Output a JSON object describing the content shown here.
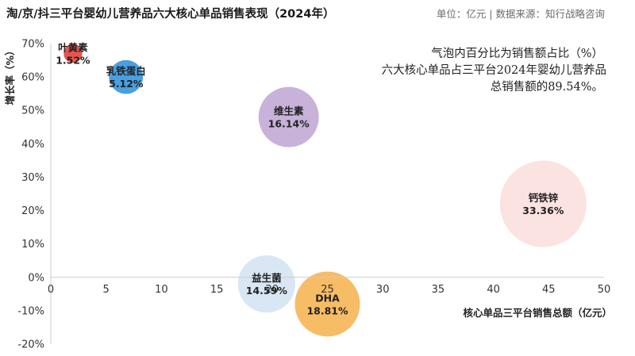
{
  "header": {
    "title": "淘/京/抖三平台婴幼儿营养品六大核心单品销售表现（2024年）",
    "source": "单位：亿元 | 数据来源：知行战略咨询"
  },
  "note": {
    "line1": "气泡内百分比为销售额占比（%）",
    "line2": "六大核心单品占三平台2024年婴幼儿营养品",
    "line3": "总销售额的89.54%。"
  },
  "chart_data": {
    "type": "scatter",
    "title": "淘/京/抖三平台婴幼儿营养品六大核心单品销售表现（2024年）",
    "xlabel": "核心单品三平台销售总额（亿元）",
    "ylabel": "增长率（%）",
    "xlim": [
      0,
      50
    ],
    "ylim": [
      -20,
      70
    ],
    "xticks": [
      "0",
      "5",
      "10",
      "15",
      "20",
      "25",
      "30",
      "35",
      "40",
      "45",
      "50"
    ],
    "yticks": [
      "70%",
      "60%",
      "50%",
      "40%",
      "30%",
      "20%",
      "10%",
      "0%",
      "-10%",
      "-20%"
    ],
    "grid": false,
    "points": [
      {
        "name": "叶黄素",
        "x": 2.0,
        "y": 67,
        "share_label": "1.52%",
        "share": 1.52,
        "color": "#e8554e"
      },
      {
        "name": "乳铁蛋白",
        "x": 6.8,
        "y": 60,
        "share_label": "5.12%",
        "share": 5.12,
        "color": "#4a9fe0"
      },
      {
        "name": "维生素",
        "x": 21.5,
        "y": 48,
        "share_label": "16.14%",
        "share": 16.14,
        "color": "#c8b2da"
      },
      {
        "name": "钙铁锌",
        "x": 44.5,
        "y": 22,
        "share_label": "33.36%",
        "share": 33.36,
        "color": "#fbe3e2"
      },
      {
        "name": "益生菌",
        "x": 19.5,
        "y": -2,
        "share_label": "14.59%",
        "share": 14.59,
        "color": "#d9e6f4"
      },
      {
        "name": "DHA",
        "x": 25,
        "y": -8,
        "share_label": "18.81%",
        "share": 18.81,
        "color": "#f7bc66"
      }
    ]
  }
}
